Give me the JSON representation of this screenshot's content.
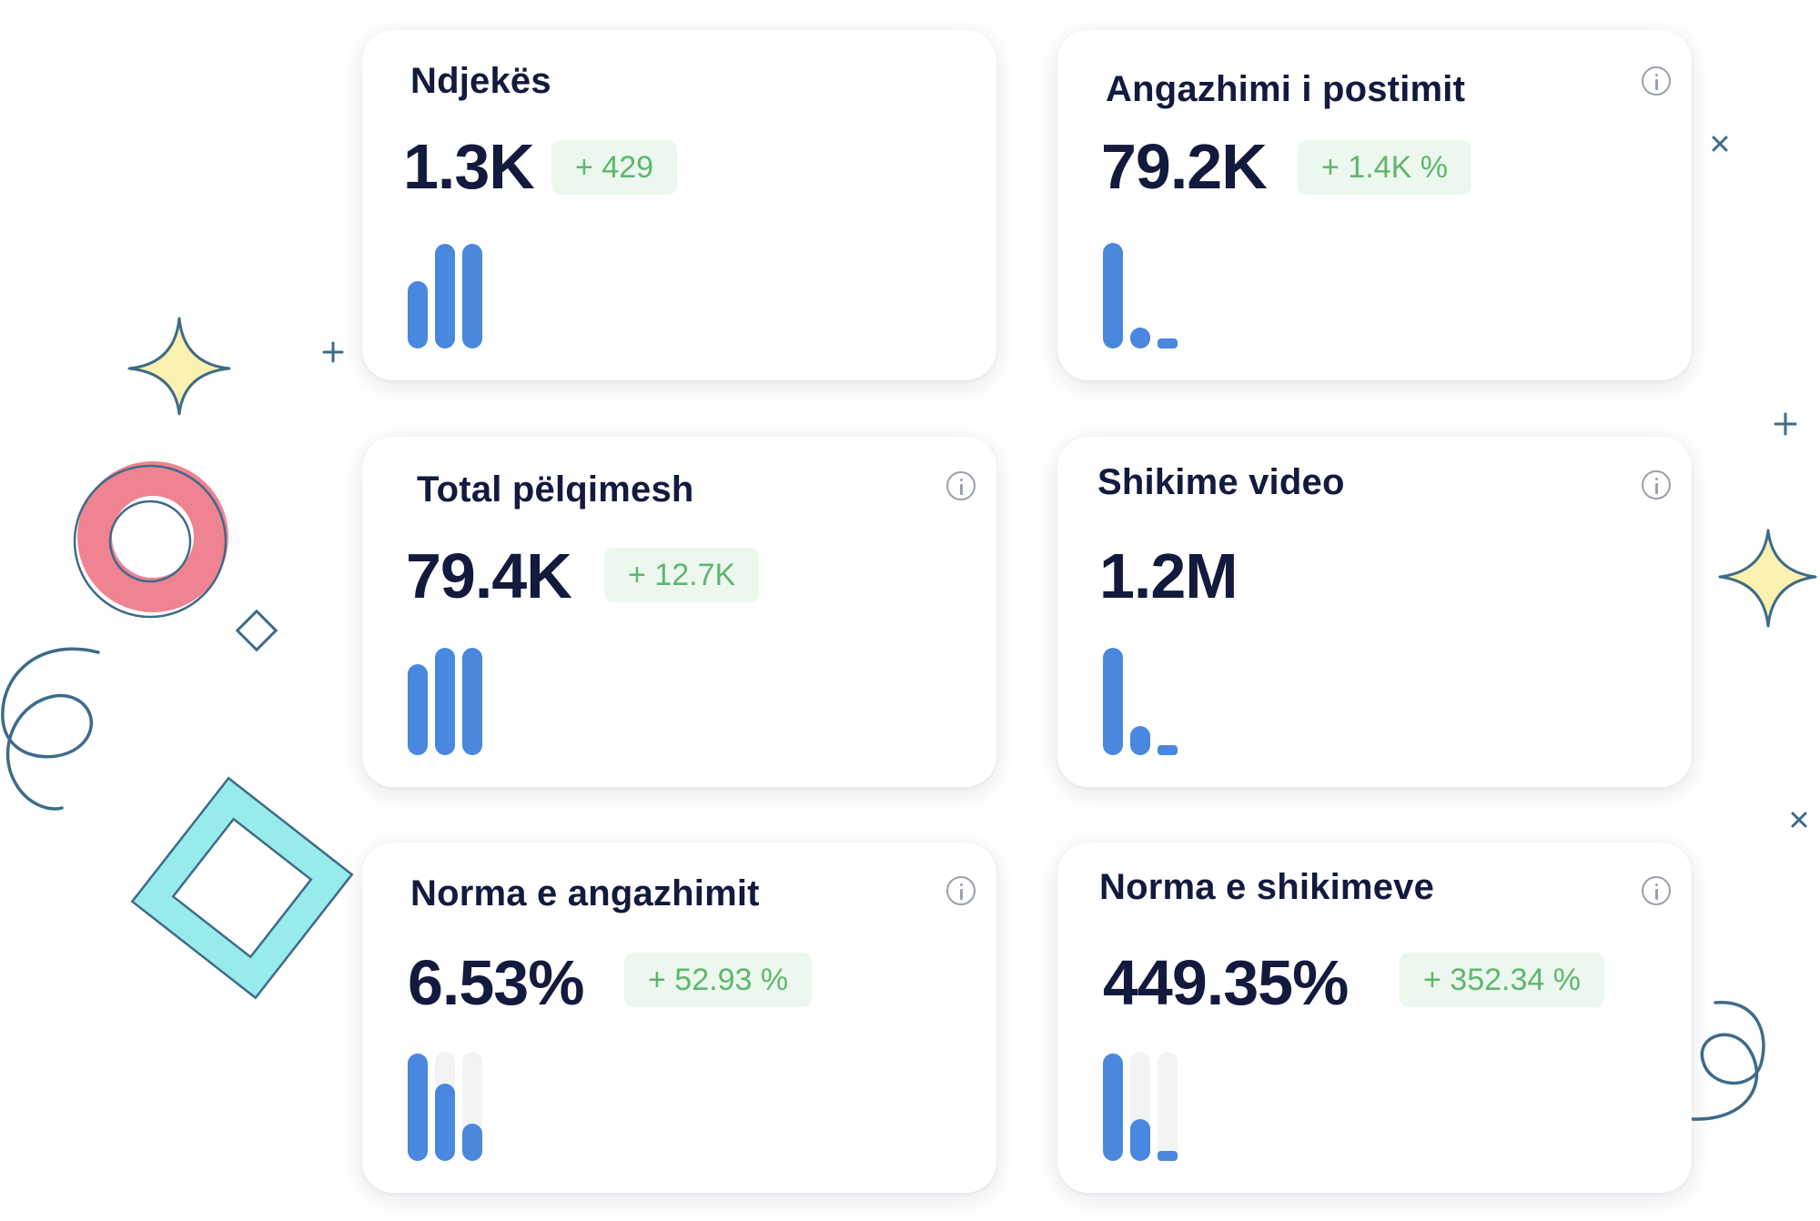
{
  "colors": {
    "card_bg": "#ffffff",
    "title": "#131a3f",
    "value": "#141a3d",
    "badge_bg": "#ecf8ee",
    "badge_text": "#5fb66e",
    "bar": "#4a87de",
    "bar_track": "#f1f3f5",
    "info_icon": "#9aa0ab",
    "decor_ring": "#f08391",
    "decor_square": "#97ebea",
    "decor_star_fill": "#fbf1b0",
    "decor_line": "#3e6b8a"
  },
  "cards": [
    {
      "title": "Ndjekës",
      "value": "1.3K",
      "badge": "+ 429",
      "info_icon": false,
      "bars": [
        0.62,
        0.96,
        0.96
      ],
      "tracks": false
    },
    {
      "title": "Angazhimi i postimit",
      "value": "79.2K",
      "badge": "+ 1.4K %",
      "info_icon": true,
      "bars": [
        0.97,
        0.19,
        0.0
      ],
      "tracks": false
    },
    {
      "title": "Total pëlqimesh",
      "value": "79.4K",
      "badge": "+ 12.7K",
      "info_icon": true,
      "bars": [
        0.83,
        0.98,
        0.98
      ],
      "tracks": false
    },
    {
      "title": "Shikime video",
      "value": "1.2M",
      "badge": "",
      "info_icon": true,
      "bars": [
        0.98,
        0.27,
        0.0
      ],
      "tracks": false
    },
    {
      "title": "Norma e angazhimit",
      "value": "6.53%",
      "badge": "+ 52.93 %",
      "info_icon": true,
      "bars": [
        0.98,
        0.71,
        0.34
      ],
      "tracks": true
    },
    {
      "title": "Norma e shikimeve",
      "value": "449.35%",
      "badge": "+ 352.34 %",
      "info_icon": true,
      "bars": [
        0.98,
        0.38,
        0.0
      ],
      "tracks": true
    }
  ]
}
